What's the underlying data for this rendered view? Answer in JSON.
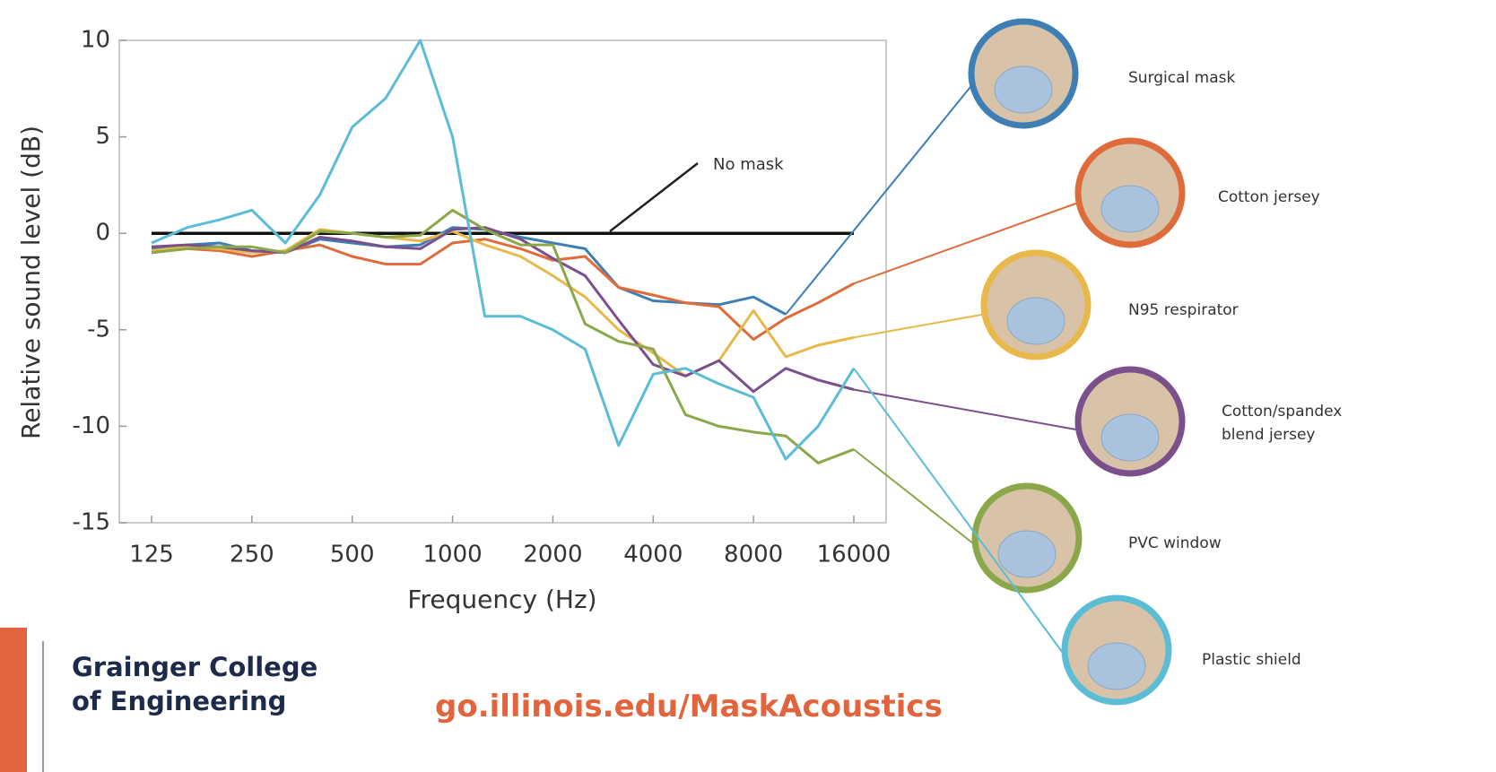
{
  "chart_data": {
    "type": "line",
    "x_label": "Frequency (Hz)",
    "y_label": "Relative sound level (dB)",
    "log_x": true,
    "grid": false,
    "xlim": [
      100,
      20000
    ],
    "ylim": [
      -15,
      10
    ],
    "xticks": [
      125,
      250,
      500,
      1000,
      2000,
      4000,
      8000,
      16000
    ],
    "yticks": [
      -15,
      -10,
      -5,
      0,
      5,
      10
    ],
    "x": [
      125,
      160,
      200,
      250,
      315,
      400,
      500,
      630,
      800,
      1000,
      1250,
      1600,
      2000,
      2500,
      3150,
      4000,
      5000,
      6300,
      8000,
      10000,
      12500,
      16000
    ],
    "series": [
      {
        "name": "No mask",
        "color": "#111111",
        "values": [
          0,
          0,
          0,
          0,
          0,
          0,
          0,
          0,
          0,
          0,
          0,
          0,
          0,
          0,
          0,
          0,
          0,
          0,
          0,
          0,
          0,
          0
        ]
      },
      {
        "name": "Surgical mask",
        "color": "#3d7fb5",
        "values": [
          -0.8,
          -0.6,
          -0.5,
          -0.9,
          -1,
          -0.3,
          -0.5,
          -0.7,
          -0.6,
          0.3,
          0.2,
          -0.2,
          -0.5,
          -0.8,
          -2.8,
          -3.5,
          -3.6,
          -3.7,
          -3.3,
          -4.2,
          null,
          null
        ]
      },
      {
        "name": "Cotton jersey",
        "color": "#e06b3a",
        "values": [
          -1,
          -0.8,
          -0.9,
          -1.2,
          -0.9,
          -0.6,
          -1.2,
          -1.6,
          -1.6,
          -0.5,
          -0.3,
          -0.8,
          -1.4,
          -1.2,
          -2.8,
          -3.2,
          -3.6,
          -3.8,
          -5.5,
          -4.4,
          -3.6,
          -2.6
        ]
      },
      {
        "name": "N95 respirator",
        "color": "#e8b84a",
        "values": [
          -0.9,
          -0.7,
          -0.8,
          -1,
          -0.9,
          0.2,
          0,
          -0.2,
          -0.4,
          0.1,
          -0.6,
          -1.2,
          -2.2,
          -3.3,
          -5,
          -6.2,
          -7.4,
          -6.6,
          -4,
          -6.4,
          -5.8,
          -5.4
        ]
      },
      {
        "name": "Cotton/spandex blend jersey",
        "color": "#7a4f8c",
        "values": [
          -0.7,
          -0.6,
          -0.7,
          -0.9,
          -1,
          -0.2,
          -0.4,
          -0.7,
          -0.8,
          0.2,
          0.3,
          -0.3,
          -1.3,
          -2.2,
          -4.5,
          -6.8,
          -7.4,
          -6.6,
          -8.2,
          -7,
          -7.6,
          -8.1
        ]
      },
      {
        "name": "PVC window",
        "color": "#8aa84a",
        "values": [
          -1,
          -0.8,
          -0.7,
          -0.7,
          -1,
          0.1,
          0,
          -0.2,
          -0.1,
          1.2,
          0.2,
          -0.6,
          -0.6,
          -4.7,
          -5.6,
          -6,
          -9.4,
          -10,
          -10.3,
          -10.5,
          -11.9,
          -11.2
        ]
      },
      {
        "name": "Plastic shield",
        "color": "#5bbcd6",
        "values": [
          -0.5,
          0.3,
          0.7,
          1.2,
          -0.5,
          2,
          5.5,
          7,
          10,
          5,
          -4.3,
          -4.3,
          -5,
          -6,
          -11,
          -7.3,
          -7,
          -7.8,
          -8.5,
          -11.7,
          -10,
          -7
        ]
      }
    ]
  },
  "footer": {
    "institution": "Grainger College of Engineering",
    "url": "go.illinois.edu/MaskAcoustics"
  }
}
